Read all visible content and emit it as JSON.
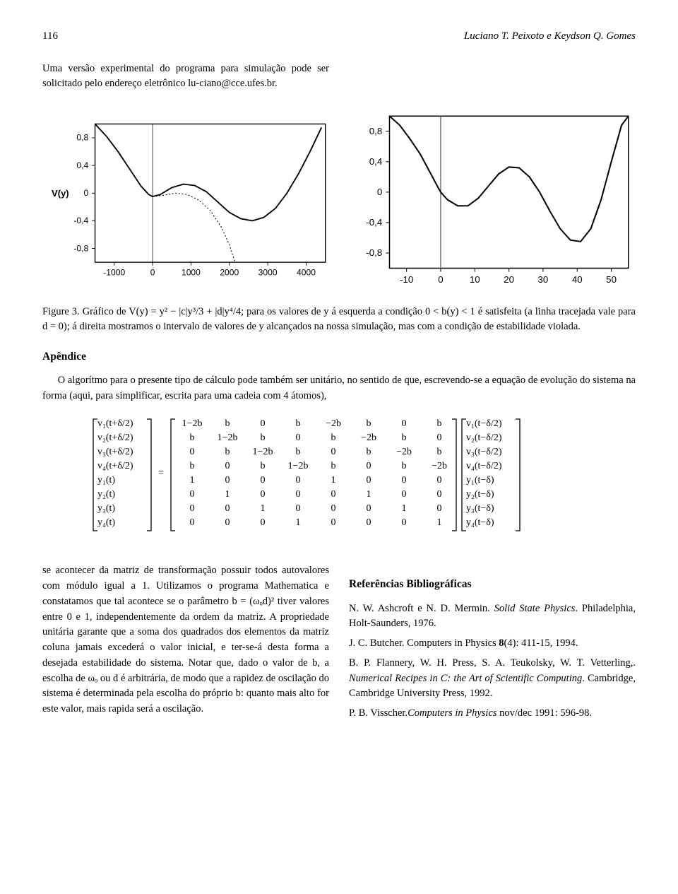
{
  "header": {
    "page_number": "116",
    "authors": "Luciano T. Peixoto e Keydson Q. Gomes"
  },
  "intro": {
    "left": "Uma versão experimental do programa para simulação pode ser solicitado pelo endereço eletrônico lu-",
    "right": "ciano@cce.ufes.br."
  },
  "figure3": {
    "left_chart": {
      "type": "line",
      "xlim": [
        -1500,
        4500
      ],
      "ylim": [
        -1.0,
        1.0
      ],
      "xticks": [
        -1000,
        0,
        1000,
        2000,
        3000,
        4000
      ],
      "yticks": [
        -0.8,
        -0.4,
        0.0,
        0.4,
        0.8
      ],
      "ylabel": "V(y)",
      "stroke_width": 2,
      "curve_color": "#000000",
      "dash_color": "#000000",
      "background": "#ffffff",
      "border_color": "#000000",
      "solid_points": [
        [
          -1500,
          1.0
        ],
        [
          -1200,
          0.82
        ],
        [
          -900,
          0.6
        ],
        [
          -600,
          0.35
        ],
        [
          -300,
          0.1
        ],
        [
          -100,
          -0.02
        ],
        [
          0,
          -0.05
        ],
        [
          200,
          -0.02
        ],
        [
          500,
          0.08
        ],
        [
          800,
          0.13
        ],
        [
          1100,
          0.11
        ],
        [
          1400,
          0.02
        ],
        [
          1700,
          -0.13
        ],
        [
          2000,
          -0.28
        ],
        [
          2300,
          -0.37
        ],
        [
          2600,
          -0.4
        ],
        [
          2900,
          -0.35
        ],
        [
          3200,
          -0.22
        ],
        [
          3500,
          0.0
        ],
        [
          3800,
          0.28
        ],
        [
          4100,
          0.6
        ],
        [
          4400,
          0.95
        ]
      ],
      "dash_points": [
        [
          0,
          -0.05
        ],
        [
          300,
          -0.03
        ],
        [
          600,
          0.0
        ],
        [
          900,
          -0.02
        ],
        [
          1200,
          -0.1
        ],
        [
          1500,
          -0.25
        ],
        [
          1800,
          -0.5
        ],
        [
          2000,
          -0.75
        ],
        [
          2150,
          -1.0
        ]
      ]
    },
    "right_chart": {
      "type": "line",
      "xlim": [
        -15,
        55
      ],
      "ylim": [
        -1.0,
        1.0
      ],
      "xticks": [
        -10,
        0,
        10,
        20,
        30,
        40,
        50
      ],
      "yticks": [
        -0.8,
        -0.4,
        0.0,
        0.4,
        0.8
      ],
      "stroke_width": 2,
      "curve_color": "#000000",
      "background": "#ffffff",
      "border_color": "#000000",
      "solid_points": [
        [
          -15,
          1.0
        ],
        [
          -12,
          0.88
        ],
        [
          -9,
          0.7
        ],
        [
          -6,
          0.5
        ],
        [
          -3,
          0.25
        ],
        [
          -1,
          0.08
        ],
        [
          0,
          0.0
        ],
        [
          2,
          -0.1
        ],
        [
          5,
          -0.18
        ],
        [
          8,
          -0.18
        ],
        [
          11,
          -0.08
        ],
        [
          14,
          0.08
        ],
        [
          17,
          0.24
        ],
        [
          20,
          0.33
        ],
        [
          23,
          0.32
        ],
        [
          26,
          0.2
        ],
        [
          29,
          0.0
        ],
        [
          32,
          -0.25
        ],
        [
          35,
          -0.48
        ],
        [
          38,
          -0.63
        ],
        [
          41,
          -0.65
        ],
        [
          44,
          -0.48
        ],
        [
          47,
          -0.1
        ],
        [
          50,
          0.4
        ],
        [
          53,
          0.88
        ],
        [
          55,
          1.0
        ]
      ]
    },
    "caption_prefix": "Figure 3. ",
    "caption": "Gráfico de V(y) = y² − |c|y³/3 + |d|y⁴/4; para os valores de y á esquerda a condição 0 < b(y) < 1 é satisfeita (a linha tracejada vale para d = 0); á direita mostramos o intervalo de valores de y alcançados na nossa simulação, mas com a condição de estabilidade violada."
  },
  "apendice": {
    "title": "Apêndice",
    "para1": "O algorítmo para o presente tipo de cálculo pode também ser unitário, no sentido de que, escrevendo-se a equação de evolução do sistema na forma (aqui, para simplificar, escrita para uma cadeia com 4 átomos),"
  },
  "matrix_eq": {
    "left_vec": [
      "v₁(t+δ/2)",
      "v₂(t+δ/2)",
      "v₃(t+δ/2)",
      "v₄(t+δ/2)",
      "y₁(t)",
      "y₂(t)",
      "y₃(t)",
      "y₄(t)"
    ],
    "matrix": [
      [
        "1−2b",
        "b",
        "0",
        "b",
        "−2b",
        "b",
        "0",
        "b"
      ],
      [
        "b",
        "1−2b",
        "b",
        "0",
        "b",
        "−2b",
        "b",
        "0"
      ],
      [
        "0",
        "b",
        "1−2b",
        "b",
        "0",
        "b",
        "−2b",
        "b"
      ],
      [
        "b",
        "0",
        "b",
        "1−2b",
        "b",
        "0",
        "b",
        "−2b"
      ],
      [
        "1",
        "0",
        "0",
        "0",
        "1",
        "0",
        "0",
        "0"
      ],
      [
        "0",
        "1",
        "0",
        "0",
        "0",
        "1",
        "0",
        "0"
      ],
      [
        "0",
        "0",
        "1",
        "0",
        "0",
        "0",
        "1",
        "0"
      ],
      [
        "0",
        "0",
        "0",
        "1",
        "0",
        "0",
        "0",
        "1"
      ]
    ],
    "right_vec": [
      "v₁(t−δ/2)",
      "v₂(t−δ/2)",
      "v₃(t−δ/2)",
      "v₄(t−δ/2)",
      "y₁(t−δ)",
      "y₂(t−δ)",
      "y₃(t−δ)",
      "y₄(t−δ)"
    ]
  },
  "bottom": {
    "left_para": "se acontecer da matriz de transformação possuir todos autovalores com módulo igual a 1. Utilizamos o programa Mathematica e constatamos que tal acontece se o parâmetro b = (ωₒd)² tiver valores entre 0 e 1, independentemente da ordem da matriz. A propriedade unitária garante que a soma dos quadrados dos elementos da matriz coluna jamais excederá o valor inicial, e ter-se-á desta forma a desejada estabilidade do sistema. Notar que, dado o valor de b, a escolha de ωₒ ou d é arbitrária, de modo que a rapidez de oscilação do sistema é determinada pela escolha do próprio b: quanto mais alto for este valor, mais rapida será a oscilação.",
    "refs_title": "Referências Bibliográficas",
    "refs": [
      {
        "text_a": "N. W. Ashcroft e N. D. Mermin. ",
        "italic": "Solid State Physics",
        "text_b": ". Philadelphia, Holt-Saunders, 1976."
      },
      {
        "text_a": "J. C. Butcher.  Computers in Physics ",
        "bold": "8",
        "text_b": "(4): 411-15, 1994."
      },
      {
        "text_a": "B. P. Flannery, W. H. Press, S. A. Teukolsky, W. T. Vetterling,. ",
        "italic": "Numerical Recipes in C: the Art of Scientific Computing",
        "text_b": ". Cambridge, Cambridge University Press, 1992."
      },
      {
        "text_a": "P. B. Visscher.",
        "italic": "Computers in Physics",
        "text_b": " nov/dec 1991: 596-98."
      }
    ]
  }
}
